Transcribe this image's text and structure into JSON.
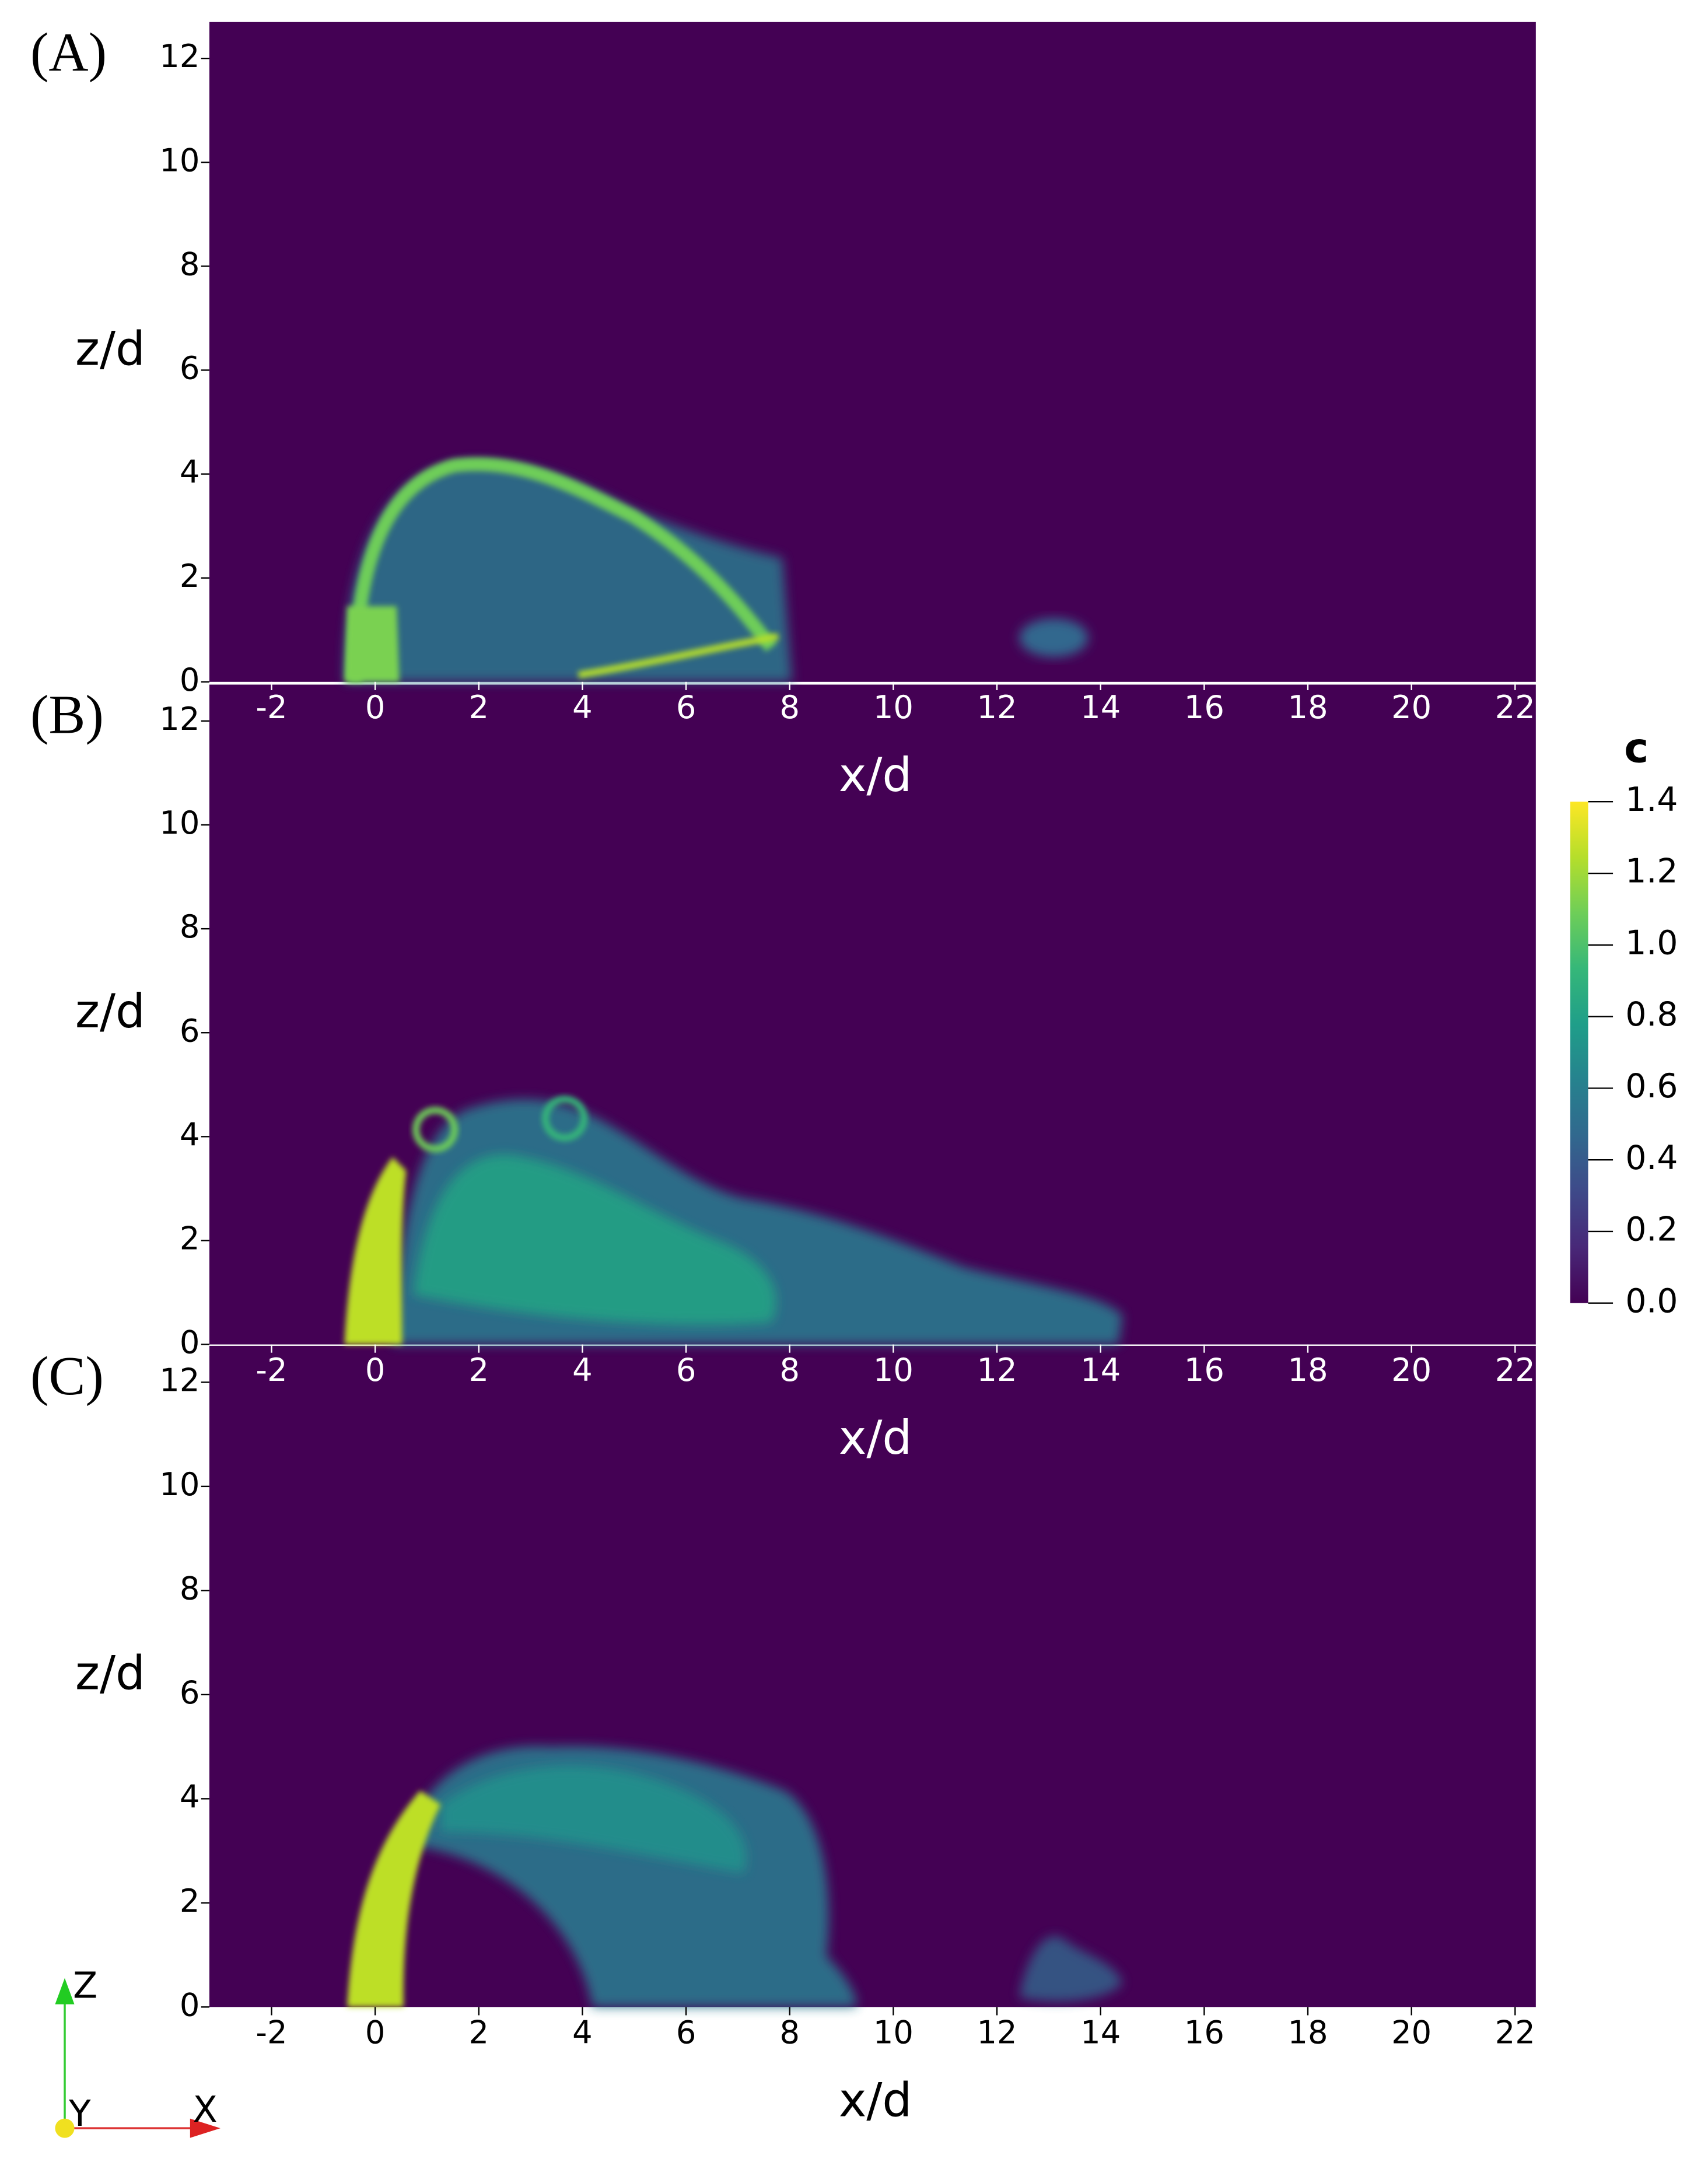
{
  "chart_data": [
    {
      "type": "field",
      "panel_label": "(A)",
      "xlabel": "x/d",
      "ylabel": "z/d",
      "xlim": [
        -3.2,
        22.4
      ],
      "ylim": [
        0,
        12.7
      ],
      "xticks": [
        -2,
        0,
        2,
        4,
        6,
        8,
        10,
        12,
        14,
        16,
        18,
        20,
        22
      ],
      "yticks": [
        0,
        2,
        4,
        6,
        8,
        10,
        12
      ],
      "background": "#440154",
      "x_label_color": "#ffffff"
    },
    {
      "type": "field",
      "panel_label": "(B)",
      "xlabel": "x/d",
      "ylabel": "z/d",
      "xlim": [
        -3.2,
        22.4
      ],
      "ylim": [
        0,
        12.7
      ],
      "xticks": [
        -2,
        0,
        2,
        4,
        6,
        8,
        10,
        12,
        14,
        16,
        18,
        20,
        22
      ],
      "yticks": [
        0,
        2,
        4,
        6,
        8,
        10,
        12
      ],
      "background": "#440154",
      "x_label_color": "#ffffff"
    },
    {
      "type": "field",
      "panel_label": "(C)",
      "xlabel": "x/d",
      "ylabel": "z/d",
      "xlim": [
        -3.2,
        22.4
      ],
      "ylim": [
        0,
        12.7
      ],
      "xticks": [
        -2,
        0,
        2,
        4,
        6,
        8,
        10,
        12,
        14,
        16,
        18,
        20,
        22
      ],
      "yticks": [
        0,
        2,
        4,
        6,
        8,
        10,
        12
      ],
      "background": "#440154",
      "x_label_color": "#000000"
    }
  ],
  "colorbar": {
    "title": "c",
    "lim": [
      0,
      1.4
    ],
    "ticks": [
      {
        "value": 0,
        "label": "0.0"
      },
      {
        "value": 0.2,
        "label": "0.2"
      },
      {
        "value": 0.4,
        "label": "0.4"
      },
      {
        "value": 0.6,
        "label": "0.6"
      },
      {
        "value": 0.8,
        "label": "0.8"
      },
      {
        "value": 1,
        "label": "1.0"
      },
      {
        "value": 1.2,
        "label": "1.2"
      },
      {
        "value": 1.4,
        "label": "1.4"
      }
    ],
    "colors": [
      "#440154",
      "#482878",
      "#3e4989",
      "#31688e",
      "#26828e",
      "#1f9e89",
      "#35b779",
      "#6ece58",
      "#b5de2b",
      "#fde725"
    ]
  },
  "orientation_axes": {
    "z": "Z",
    "y": "Y",
    "x": "X"
  }
}
